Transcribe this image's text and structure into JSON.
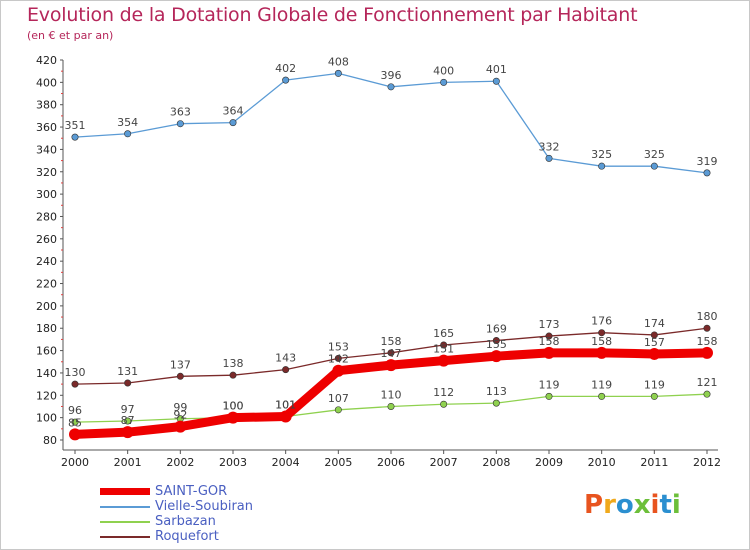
{
  "header": {
    "title": "Evolution de la Dotation Globale de Fonctionnement par Habitant",
    "subtitle": "(en € et par an)"
  },
  "logo": {
    "text": "Proxiti",
    "colors": [
      "#e8541f",
      "#f0a91c",
      "#2b8fd0",
      "#6cbf3a",
      "#e8541f",
      "#2b8fd0",
      "#6cbf3a"
    ]
  },
  "chart_data": {
    "type": "line",
    "title": "Evolution de la Dotation Globale de Fonctionnement par Habitant",
    "subtitle": "(en € et par an)",
    "xlabel": "",
    "ylabel": "",
    "x": [
      2000,
      2001,
      2002,
      2003,
      2004,
      2005,
      2006,
      2007,
      2008,
      2009,
      2010,
      2011,
      2012
    ],
    "ylim": [
      80,
      420
    ],
    "yticks": [
      80,
      100,
      120,
      140,
      160,
      180,
      200,
      220,
      240,
      260,
      280,
      300,
      320,
      340,
      360,
      380,
      400,
      420
    ],
    "grid": false,
    "legend_position": "bottom-left",
    "series": [
      {
        "name": "SAINT-GOR",
        "color": "#ee0000",
        "values": [
          85,
          87,
          92,
          100,
          101,
          142,
          147,
          151,
          155,
          158,
          158,
          157,
          158
        ]
      },
      {
        "name": "Vielle-Soubiran",
        "color": "#5b9bd5",
        "values": [
          351,
          354,
          363,
          364,
          402,
          408,
          396,
          400,
          401,
          332,
          325,
          325,
          319
        ]
      },
      {
        "name": "Sarbazan",
        "color": "#8fd14f",
        "values": [
          96,
          97,
          99,
          100,
          101,
          107,
          110,
          112,
          113,
          119,
          119,
          119,
          121
        ]
      },
      {
        "name": "Roquefort",
        "color": "#7b2a2a",
        "values": [
          130,
          131,
          137,
          138,
          143,
          153,
          158,
          165,
          169,
          173,
          176,
          174,
          180
        ]
      }
    ]
  }
}
